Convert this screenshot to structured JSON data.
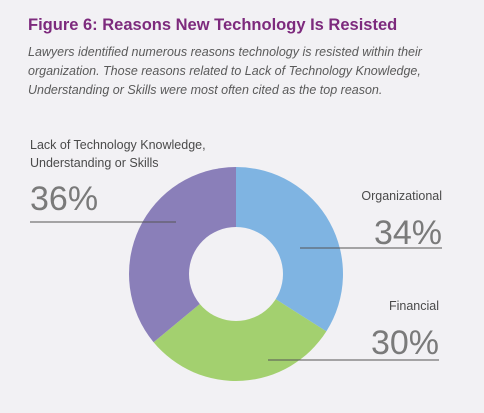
{
  "title": "Figure 6: Reasons New Technology Is Resisted",
  "subtitle": "Lawyers identified numerous reasons technology is resisted within their organization. Those reasons related to Lack of Technology Knowledge, Understanding or Skills were most often cited as the top reason.",
  "chart_data": {
    "type": "pie",
    "donut": true,
    "slices": [
      {
        "label": "Organizational",
        "value": 34,
        "display": "34%",
        "color": "#7fb4e2"
      },
      {
        "label": "Financial",
        "value": 30,
        "display": "30%",
        "color": "#a3d06f"
      },
      {
        "label_lines": [
          "Lack of Technology Knowledge,",
          "Understanding or Skills"
        ],
        "value": 36,
        "display": "36%",
        "color": "#8a7fb9"
      }
    ]
  }
}
